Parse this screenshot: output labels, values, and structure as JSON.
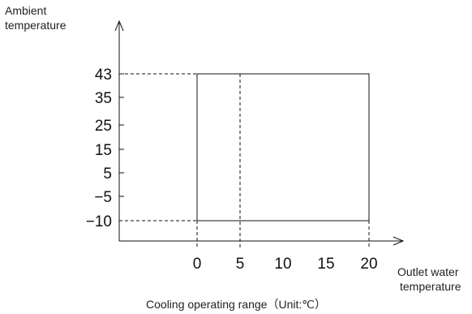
{
  "chart_data": {
    "type": "area",
    "title": "",
    "xlabel_lines": [
      "Outlet water",
      "temperature"
    ],
    "ylabel_lines": [
      "Ambient",
      "temperature"
    ],
    "caption": "Cooling operating range（Unit:℃）",
    "x_ticks": [
      "0",
      "5",
      "10",
      "15",
      "20"
    ],
    "y_ticks": [
      "43",
      "35",
      "25",
      "15",
      "5",
      "−5",
      "−10"
    ],
    "x_tick_values": [
      0,
      5,
      10,
      15,
      20
    ],
    "y_tick_values": [
      43,
      35,
      25,
      15,
      5,
      -5,
      -10
    ],
    "operating_region": {
      "x_min": 0,
      "x_max": 20,
      "y_min": -10,
      "y_max": 43
    },
    "reference_line_x": 5,
    "grid": false,
    "colors": {
      "line": "#111111",
      "text": "#222222"
    }
  }
}
